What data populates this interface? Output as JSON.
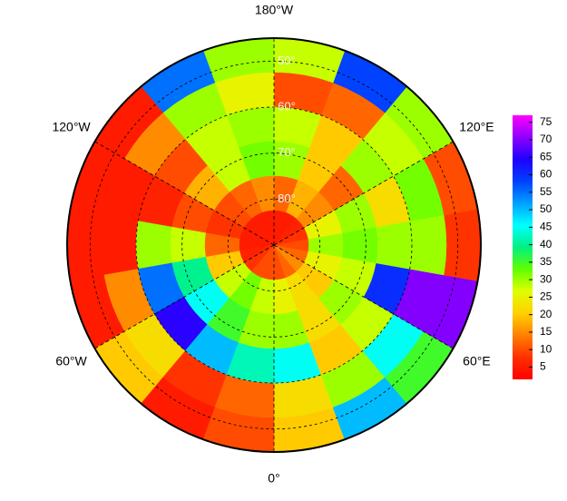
{
  "chart_data": {
    "type": "polar_heatmap",
    "lat_edges": [
      45,
      52.5,
      60,
      67.5,
      75,
      82.5,
      90
    ],
    "lon_edges": [
      0,
      20,
      40,
      60,
      80,
      100,
      120,
      140,
      160,
      180,
      200,
      220,
      240,
      260,
      280,
      300,
      320,
      340,
      360
    ],
    "values": [
      [
        20,
        50,
        35,
        70,
        8,
        10,
        30,
        58,
        28,
        30,
        55,
        5,
        5,
        5,
        5,
        20,
        5,
        10
      ],
      [
        22,
        30,
        45,
        70,
        30,
        32,
        28,
        12,
        10,
        25,
        30,
        15,
        5,
        5,
        15,
        22,
        8,
        12
      ],
      [
        45,
        20,
        28,
        60,
        30,
        22,
        30,
        20,
        28,
        30,
        28,
        10,
        6,
        30,
        55,
        65,
        50,
        42
      ],
      [
        30,
        22,
        30,
        28,
        32,
        30,
        12,
        20,
        30,
        32,
        28,
        18,
        10,
        28,
        40,
        45,
        35,
        30
      ],
      [
        25,
        22,
        20,
        25,
        30,
        25,
        15,
        18,
        12,
        15,
        12,
        10,
        8,
        12,
        20,
        28,
        32,
        28
      ],
      [
        10,
        12,
        15,
        12,
        10,
        8,
        6,
        5,
        5,
        5,
        5,
        5,
        5,
        5,
        6,
        8,
        10,
        10
      ]
    ],
    "lonticks": [
      {
        "value": 180,
        "label": "180°W"
      },
      {
        "value": 240,
        "label": "120°W"
      },
      {
        "value": 120,
        "label": "120°E"
      },
      {
        "value": 300,
        "label": "60°W"
      },
      {
        "value": 60,
        "label": "60°E"
      },
      {
        "value": 0,
        "label": "0°"
      }
    ],
    "latticks": [
      {
        "value": 50,
        "label": "50°"
      },
      {
        "value": 60,
        "label": "60°"
      },
      {
        "value": 70,
        "label": "70°"
      },
      {
        "value": 80,
        "label": "80°"
      }
    ],
    "clim": [
      1.5,
      77
    ],
    "cticks": [
      5,
      10,
      15,
      20,
      25,
      30,
      35,
      40,
      45,
      50,
      55,
      60,
      65,
      70,
      75
    ],
    "colormap": [
      "#ff0000",
      "#ff3000",
      "#ff8000",
      "#ffd000",
      "#e0ff00",
      "#60ff00",
      "#00f080",
      "#00ffff",
      "#00a0ff",
      "#0040ff",
      "#2000ff",
      "#9000ff",
      "#ff00ff"
    ]
  }
}
